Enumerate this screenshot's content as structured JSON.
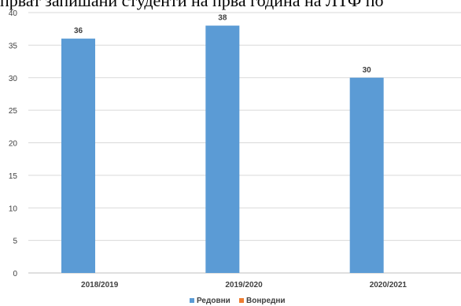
{
  "title": "прват запишани студенти на прва година на ЛТФ по",
  "chart_data": {
    "type": "bar",
    "categories": [
      "2018/2019",
      "2019/2020",
      "2020/2021"
    ],
    "series": [
      {
        "name": "Редовни",
        "color": "#5b9bd5",
        "values": [
          36,
          38,
          30
        ]
      },
      {
        "name": "Вонредни",
        "color": "#ed7d31",
        "values": [
          null,
          null,
          null
        ]
      }
    ],
    "ylim": [
      0,
      40
    ],
    "yticks": [
      0,
      5,
      10,
      15,
      20,
      25,
      30,
      35,
      40
    ],
    "grid": true,
    "legend": "bottom"
  }
}
